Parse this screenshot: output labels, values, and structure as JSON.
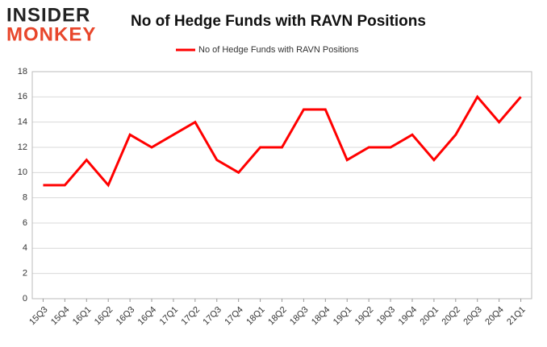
{
  "logo": {
    "line1": "INSIDER",
    "line2": "MONKEY"
  },
  "chart_data": {
    "type": "line",
    "title": "No of Hedge Funds with RAVN Positions",
    "categories": [
      "15Q3",
      "15Q4",
      "16Q1",
      "16Q2",
      "16Q3",
      "16Q4",
      "17Q1",
      "17Q2",
      "17Q3",
      "17Q4",
      "18Q1",
      "18Q2",
      "18Q3",
      "18Q4",
      "19Q1",
      "19Q2",
      "19Q3",
      "19Q4",
      "20Q1",
      "20Q2",
      "20Q3",
      "20Q4",
      "21Q1"
    ],
    "series": [
      {
        "name": "No of Hedge Funds with RAVN Positions",
        "color": "#ff0000",
        "values": [
          9,
          9,
          11,
          9,
          13,
          12,
          13,
          14,
          11,
          10,
          12,
          12,
          15,
          15,
          11,
          12,
          12,
          13,
          11,
          13,
          16,
          14,
          16
        ]
      }
    ],
    "ylim": [
      0,
      18
    ],
    "yticks": [
      0,
      2,
      4,
      6,
      8,
      10,
      12,
      14,
      16,
      18
    ],
    "grid": true,
    "legend": "top"
  }
}
